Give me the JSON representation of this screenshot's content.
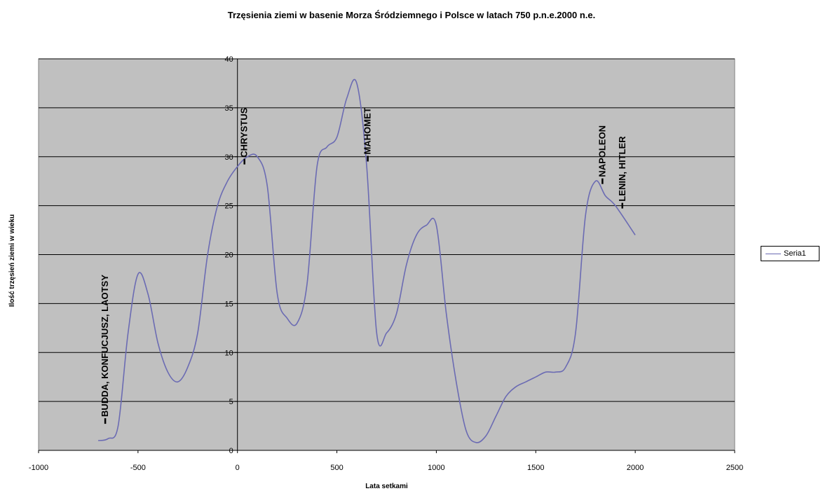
{
  "chart_data": {
    "type": "line",
    "title": "Trzęsienia ziemi w basenie Morza Śródziemnego i Polsce w latach 750 p.n.e.2000 n.e.",
    "xlabel": "Lata setkami",
    "ylabel": "Ilość trzęsień ziemi w wieku",
    "xlim": [
      -1000,
      2500
    ],
    "ylim": [
      0,
      40
    ],
    "x_ticks": [
      -1000,
      -500,
      0,
      500,
      1000,
      1500,
      2000,
      2500
    ],
    "y_ticks": [
      0,
      5,
      10,
      15,
      20,
      25,
      30,
      35,
      40
    ],
    "grid": "horizontal",
    "legend_position": "right",
    "series": [
      {
        "name": "Seria1",
        "color": "#6b6bb3",
        "x": [
          -700,
          -650,
          -600,
          -550,
          -500,
          -450,
          -400,
          -350,
          -300,
          -250,
          -200,
          -150,
          -100,
          -50,
          0,
          50,
          100,
          150,
          200,
          250,
          300,
          350,
          400,
          450,
          500,
          550,
          600,
          650,
          700,
          750,
          800,
          850,
          900,
          950,
          1000,
          1050,
          1100,
          1150,
          1200,
          1250,
          1300,
          1350,
          1400,
          1450,
          1500,
          1550,
          1600,
          1650,
          1700,
          1750,
          1800,
          1850,
          1900,
          2000
        ],
        "values": [
          1,
          1.2,
          2.5,
          12,
          18,
          16,
          11,
          8,
          7,
          8.5,
          12,
          20,
          25,
          27.5,
          29,
          30,
          30,
          27,
          16,
          13.5,
          13,
          17,
          29,
          31,
          32,
          36,
          37.5,
          29,
          12,
          12,
          14,
          19,
          22,
          23,
          23,
          14,
          7,
          2,
          0.8,
          1.5,
          3.5,
          5.5,
          6.5,
          7,
          7.5,
          8,
          8,
          8.5,
          12,
          24,
          27.5,
          26,
          25,
          22
        ]
      }
    ],
    "annotations": [
      {
        "text": "BUDDA, KONFUCJUSZ, LAOTSY",
        "x": -700,
        "y": 3
      },
      {
        "text": "CHRYSTUS",
        "x": 0,
        "y": 29.5
      },
      {
        "text": "MAHOMET",
        "x": 620,
        "y": 29.8
      },
      {
        "text": "NAPOLEON",
        "x": 1800,
        "y": 27.5
      },
      {
        "text": "LENIN, HITLER",
        "x": 1900,
        "y": 25
      }
    ]
  }
}
